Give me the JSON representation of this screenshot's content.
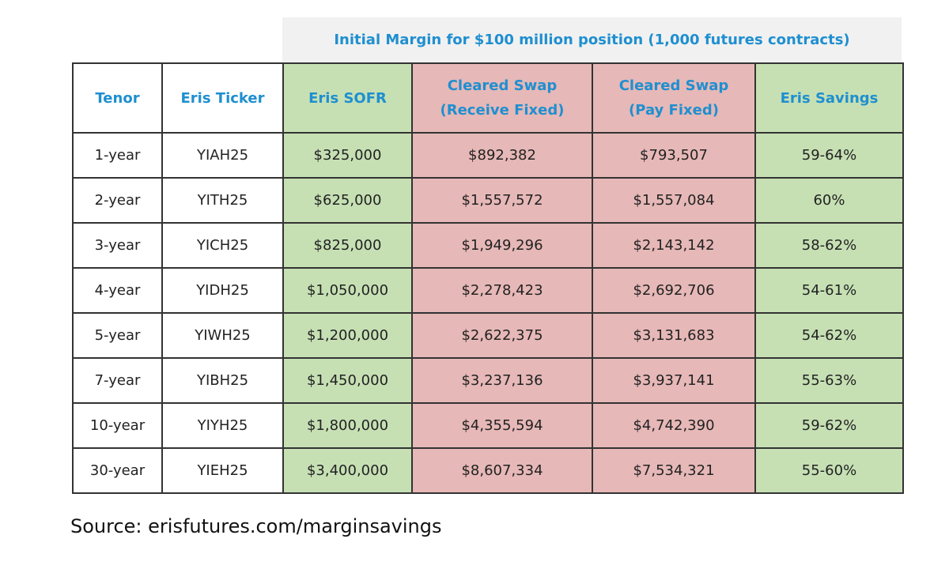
{
  "banner": {
    "title": "Initial Margin for $100 million position (1,000 futures contracts)"
  },
  "table": {
    "headers": [
      {
        "label": "Tenor",
        "fill": "plain"
      },
      {
        "label": "Eris Ticker",
        "fill": "plain"
      },
      {
        "label": "Eris SOFR",
        "fill": "green"
      },
      {
        "label": "Cleared Swap\n(Receive Fixed)",
        "fill": "red"
      },
      {
        "label": "Cleared Swap\n(Pay Fixed)",
        "fill": "red"
      },
      {
        "label": "Eris Savings",
        "fill": "green"
      }
    ],
    "rows": [
      [
        "1-year",
        "YIAH25",
        "$325,000",
        "$892,382",
        "$793,507",
        "59-64%"
      ],
      [
        "2-year",
        "YITH25",
        "$625,000",
        "$1,557,572",
        "$1,557,084",
        "60%"
      ],
      [
        "3-year",
        "YICH25",
        "$825,000",
        "$1,949,296",
        "$2,143,142",
        "58-62%"
      ],
      [
        "4-year",
        "YIDH25",
        "$1,050,000",
        "$2,278,423",
        "$2,692,706",
        "54-61%"
      ],
      [
        "5-year",
        "YIWH25",
        "$1,200,000",
        "$2,622,375",
        "$3,131,683",
        "54-62%"
      ],
      [
        "7-year",
        "YIBH25",
        "$1,450,000",
        "$3,237,136",
        "$3,937,141",
        "55-63%"
      ],
      [
        "10-year",
        "YIYH25",
        "$1,800,000",
        "$4,355,594",
        "$4,742,390",
        "59-62%"
      ],
      [
        "30-year",
        "YIEH25",
        "$3,400,000",
        "$8,607,334",
        "$7,534,321",
        "55-60%"
      ]
    ]
  },
  "source": "Source: erisfutures.com/marginsavings",
  "colors": {
    "header_text": "#1f8fd0",
    "eris_green": "#c6e0b4",
    "swap_red": "#e6b8b7",
    "banner_bg": "#f1f1f1"
  }
}
